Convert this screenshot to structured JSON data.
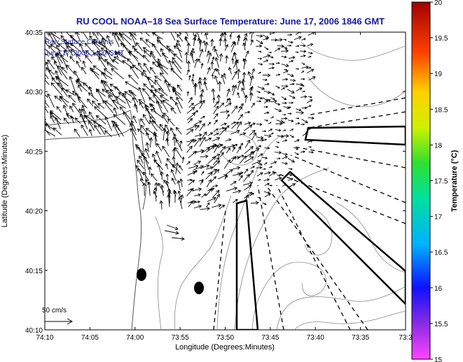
{
  "chart_data": {
    "type": "vector-field",
    "title": "RU COOL  NOAA–18  Sea Surface Temperature:  June 17, 2006 1846 GMT",
    "annotation_lines": [
      "Raw Surface Currents",
      "June 17, 2006 1400 GMT"
    ],
    "xlabel": "Longitude (Degrees:Minutes)",
    "ylabel": "Latitude (Degrees:Minutes)",
    "x_ticks": [
      "74:10",
      "74:05",
      "74:00",
      "73:55",
      "73:50",
      "73:45",
      "73:40",
      "73:35",
      "73:3"
    ],
    "y_ticks": [
      "40:35",
      "40:30",
      "40:25",
      "40:20",
      "40:15",
      "40:10"
    ],
    "xlim": [
      -74.1667,
      -73.5
    ],
    "ylim": [
      40.1667,
      40.5833
    ],
    "scale_label": "50 cm/s",
    "colorbar": {
      "label": "Temperature (°C)",
      "range": [
        15,
        20
      ],
      "ticks": [
        "20",
        "19.5",
        "19",
        "18.5",
        "18",
        "17.5",
        "17",
        "16.5",
        "16",
        "15.5",
        "15"
      ]
    },
    "markers": [
      {
        "lon": -73.98,
        "lat": 40.23
      },
      {
        "lon": -73.9,
        "lat": 40.22
      }
    ]
  },
  "colors": {
    "title": "#1a1aa0",
    "annotation": "#1a1aa0",
    "arrows": "#000000",
    "contours": "#888888"
  }
}
